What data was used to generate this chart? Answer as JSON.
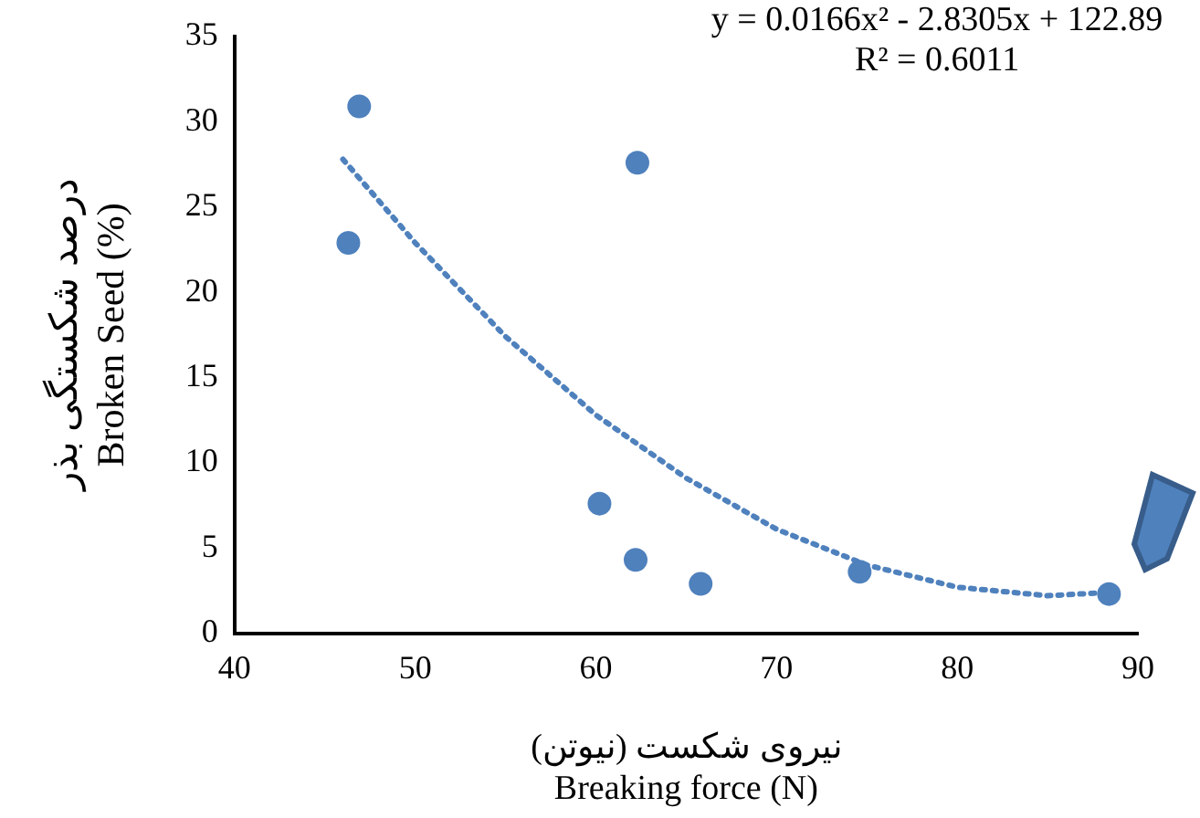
{
  "chart_data": {
    "type": "scatter",
    "xlabel": "نیروی شکست (نیوتن)\nBreaking force (N)",
    "ylabel": "درصد شکستگی بذر\nBroken Seed (%)",
    "xlim": [
      40,
      90
    ],
    "xticks": [
      40,
      50,
      60,
      70,
      80,
      90
    ],
    "ylim": [
      0,
      35
    ],
    "yticks": [
      0,
      5,
      10,
      15,
      20,
      25,
      30,
      35
    ],
    "grid": false,
    "legend": false,
    "annotations": [
      "y = 0.0166x² - 2.8305x + 122.89",
      "R² = 0.6011"
    ],
    "series": [
      {
        "type": "scatter",
        "color": "#4f81bd",
        "marker": "circle",
        "x": [
          46.3,
          46.9,
          62.3,
          60.2,
          62.2,
          65.8,
          74.6,
          88.4
        ],
        "values": [
          22.9,
          30.9,
          27.6,
          7.6,
          4.3,
          2.9,
          3.6,
          2.3
        ]
      },
      {
        "type": "line",
        "color": "#4f81bd",
        "marker": "none",
        "line_style": "dotted",
        "x": [
          46,
          50,
          55,
          60,
          65,
          70,
          75,
          80,
          85,
          88.5
        ],
        "values": [
          27.8,
          22.9,
          17.4,
          12.8,
          9.1,
          6.1,
          4.0,
          2.7,
          2.2,
          2.4
        ]
      }
    ]
  }
}
